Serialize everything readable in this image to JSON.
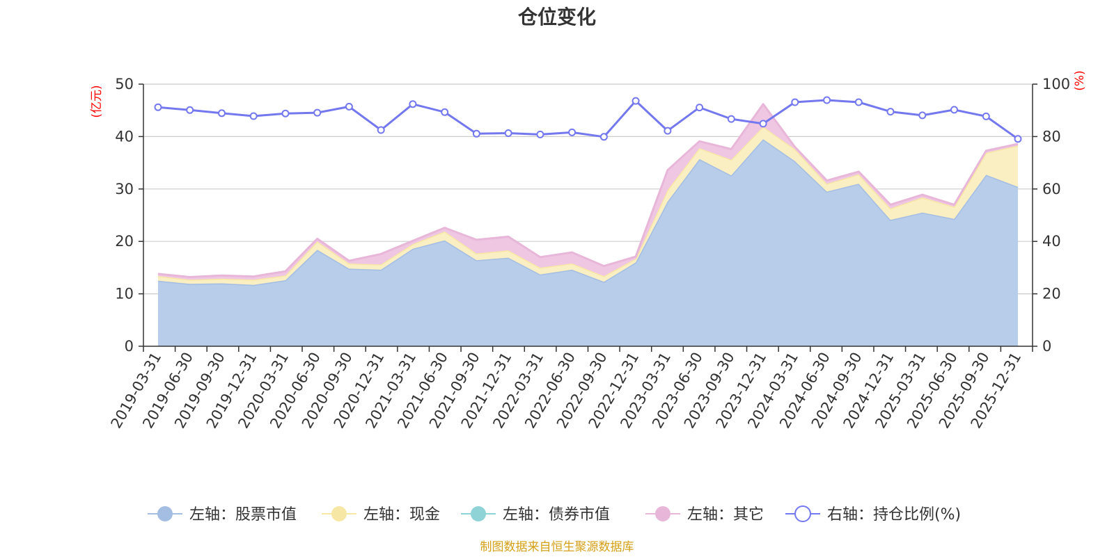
{
  "chart_data": {
    "type": "area",
    "title": "仓位变化",
    "source_note": "制图数据来自恒生聚源数据库",
    "left_axis": {
      "unit": "(亿元)",
      "min": 0,
      "max": 50,
      "ticks": [
        0,
        10,
        20,
        30,
        40,
        50
      ]
    },
    "right_axis": {
      "unit": "(%)",
      "min": 0,
      "max": 100,
      "ticks": [
        0,
        20,
        40,
        60,
        80,
        100
      ]
    },
    "categories": [
      "2019-03-31",
      "2019-06-30",
      "2019-09-30",
      "2019-12-31",
      "2020-03-31",
      "2020-06-30",
      "2020-09-30",
      "2020-12-31",
      "2021-03-31",
      "2021-06-30",
      "2021-09-30",
      "2021-12-31",
      "2022-03-31",
      "2022-06-30",
      "2022-09-30",
      "2022-12-31",
      "2023-03-31",
      "2023-06-30",
      "2023-09-30",
      "2023-12-31",
      "2024-03-31",
      "2024-06-30",
      "2024-09-30",
      "2024-12-31",
      "2025-03-31",
      "2025-06-30",
      "2025-09-30",
      "2025-12-31"
    ],
    "series": [
      {
        "name": "左轴：股票市值",
        "axis": "left",
        "type": "stacked-area",
        "color": "#a3bde3",
        "fill": "#b8cdea",
        "values": [
          12.5,
          11.9,
          12.0,
          11.7,
          12.6,
          18.4,
          14.8,
          14.6,
          18.6,
          20.2,
          16.4,
          16.9,
          13.7,
          14.6,
          12.3,
          16.0,
          27.6,
          35.7,
          32.6,
          39.5,
          35.3,
          29.5,
          31.0,
          24.1,
          25.5,
          24.3,
          32.7,
          30.4
        ]
      },
      {
        "name": "左轴：现金",
        "axis": "left",
        "type": "stacked-area",
        "color": "#f7e7a5",
        "fill": "#faeec3",
        "values": [
          0.9,
          0.8,
          0.9,
          1.0,
          0.9,
          1.6,
          1.0,
          1.0,
          0.9,
          1.7,
          1.3,
          1.4,
          1.3,
          1.2,
          1.1,
          0.7,
          2.2,
          2.1,
          3.0,
          2.4,
          2.3,
          1.5,
          1.8,
          2.2,
          2.9,
          2.3,
          4.2,
          7.9
        ]
      },
      {
        "name": "左轴：债券市值",
        "axis": "left",
        "type": "stacked-area",
        "color": "#8fd3d6",
        "fill": "#a8dfe1",
        "values": [
          0,
          0,
          0,
          0,
          0,
          0,
          0,
          0,
          0,
          0,
          0,
          0,
          0,
          0,
          0,
          0,
          0,
          0,
          0,
          0,
          0,
          0,
          0,
          0,
          0,
          0,
          0,
          0
        ]
      },
      {
        "name": "左轴：其它",
        "axis": "left",
        "type": "stacked-area",
        "color": "#e8b6d8",
        "fill": "#efc7e3",
        "values": [
          0.4,
          0.5,
          0.6,
          0.6,
          0.8,
          0.5,
          0.5,
          2.0,
          0.6,
          0.7,
          2.6,
          2.6,
          2.0,
          2.1,
          1.9,
          0.4,
          3.8,
          1.3,
          2.0,
          4.3,
          0.4,
          0.6,
          0.5,
          0.7,
          0.5,
          0.4,
          0.4,
          0.3
        ]
      },
      {
        "name": "右轴：持仓比例(%)",
        "axis": "right",
        "type": "line",
        "color": "#7478ee",
        "values": [
          91.2,
          90.1,
          88.9,
          87.8,
          88.8,
          89.1,
          91.4,
          82.5,
          92.4,
          89.3,
          81.1,
          81.3,
          80.8,
          81.6,
          79.9,
          93.6,
          82.2,
          91.1,
          86.7,
          84.9,
          93.1,
          93.9,
          93.1,
          89.5,
          88.1,
          90.2,
          87.7,
          79.1
        ]
      }
    ]
  }
}
